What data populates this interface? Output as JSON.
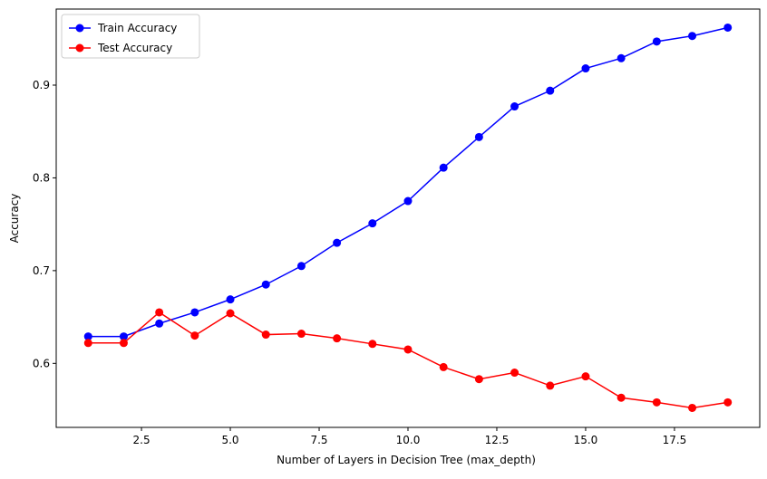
{
  "chart_data": {
    "type": "line",
    "x_label": "Number of Layers in Decision Tree (max_depth)",
    "y_label": "Accuracy",
    "x": [
      1,
      2,
      3,
      4,
      5,
      6,
      7,
      8,
      9,
      10,
      11,
      12,
      13,
      14,
      15,
      16,
      17,
      18,
      19
    ],
    "series": [
      {
        "name": "Train Accuracy",
        "color": "#0000ff",
        "values": [
          0.629,
          0.629,
          0.643,
          0.655,
          0.669,
          0.685,
          0.705,
          0.73,
          0.751,
          0.775,
          0.811,
          0.844,
          0.877,
          0.894,
          0.918,
          0.929,
          0.947,
          0.953,
          0.962
        ]
      },
      {
        "name": "Test Accuracy",
        "color": "#ff0000",
        "values": [
          0.622,
          0.622,
          0.655,
          0.63,
          0.654,
          0.631,
          0.632,
          0.627,
          0.621,
          0.615,
          0.596,
          0.583,
          0.59,
          0.576,
          0.586,
          0.563,
          0.558,
          0.552,
          0.558
        ]
      }
    ],
    "xlim": [
      0.1,
      19.9
    ],
    "ylim": [
      0.531,
      0.982
    ],
    "xticks": [
      2.5,
      {
        "value": 5,
        "label": "5.0"
      },
      7.5,
      {
        "value": 10,
        "label": "10.0"
      },
      12.5,
      {
        "value": 15,
        "label": "15.0"
      },
      17.5
    ],
    "yticks": [
      0.6,
      0.7,
      0.8,
      0.9
    ],
    "legend": "upper left"
  }
}
